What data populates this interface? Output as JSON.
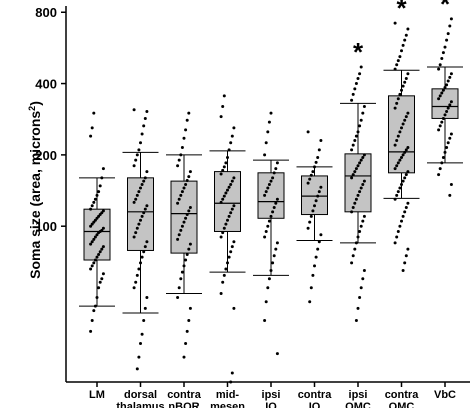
{
  "chart_data": {
    "type": "box",
    "ylabel": "Soma size (area, microns²)",
    "ylabel_parts": {
      "main": "Soma size (area, microns",
      "sup": "2",
      "close": ")"
    },
    "y_scale": "log",
    "ylim": [
      22,
      850
    ],
    "yticks": [
      100,
      200,
      400,
      800
    ],
    "ytick_labels": [
      "100",
      "200",
      "400",
      "800"
    ],
    "grid": false,
    "categories": [
      {
        "line1": "LM",
        "line2": ""
      },
      {
        "line1": "dorsal",
        "line2": "thalamus"
      },
      {
        "line1": "contra",
        "line2": "nBOR"
      },
      {
        "line1": "mid-",
        "line2": "mesen"
      },
      {
        "line1": "ipsi",
        "line2": "IO"
      },
      {
        "line1": "contra",
        "line2": "IO"
      },
      {
        "line1": "ipsi",
        "line2": "OMC"
      },
      {
        "line1": "contra",
        "line2": "OMC"
      },
      {
        "line1": "VbC",
        "line2": ""
      }
    ],
    "boxes": [
      {
        "q1": 72,
        "median": 95,
        "q3": 118,
        "whisker_low": 46,
        "whisker_high": 160,
        "significant": false
      },
      {
        "q1": 79,
        "median": 115,
        "q3": 160,
        "whisker_low": 43,
        "whisker_high": 205,
        "significant": false
      },
      {
        "q1": 77,
        "median": 113,
        "q3": 155,
        "whisker_low": 52,
        "whisker_high": 200,
        "significant": false
      },
      {
        "q1": 95,
        "median": 125,
        "q3": 170,
        "whisker_low": 64,
        "whisker_high": 208,
        "significant": false
      },
      {
        "q1": 108,
        "median": 127,
        "q3": 168,
        "whisker_low": 62,
        "whisker_high": 190,
        "significant": false
      },
      {
        "q1": 112,
        "median": 134,
        "q3": 163,
        "whisker_low": 87,
        "whisker_high": 178,
        "significant": false
      },
      {
        "q1": 115,
        "median": 163,
        "q3": 202,
        "whisker_low": 85,
        "whisker_high": 330,
        "significant": true
      },
      {
        "q1": 168,
        "median": 206,
        "q3": 355,
        "whisker_low": 131,
        "whisker_high": 455,
        "significant": true
      },
      {
        "q1": 285,
        "median": 320,
        "q3": 380,
        "whisker_low": 185,
        "whisker_high": 470,
        "significant": true
      }
    ],
    "points": [
      [
        36,
        40,
        44,
        46,
        50,
        55,
        58,
        60,
        63,
        66,
        68,
        70,
        72,
        74,
        76,
        78,
        80,
        82,
        84,
        86,
        88,
        90,
        92,
        94,
        95,
        96,
        98,
        100,
        102,
        104,
        106,
        108,
        110,
        112,
        114,
        116,
        118,
        122,
        126,
        130,
        135,
        140,
        148,
        160,
        175,
        240,
        260,
        300
      ],
      [
        25,
        28,
        32,
        35,
        40,
        45,
        50,
        55,
        58,
        62,
        66,
        70,
        74,
        78,
        82,
        86,
        90,
        94,
        98,
        102,
        106,
        110,
        114,
        118,
        122,
        126,
        130,
        135,
        140,
        145,
        150,
        155,
        160,
        170,
        180,
        190,
        200,
        210,
        225,
        245,
        265,
        285,
        305,
        310
      ],
      [
        28,
        32,
        36,
        40,
        45,
        50,
        55,
        60,
        64,
        68,
        72,
        76,
        80,
        84,
        88,
        92,
        96,
        100,
        104,
        108,
        112,
        116,
        120,
        125,
        130,
        135,
        140,
        145,
        150,
        156,
        162,
        170,
        180,
        190,
        200,
        215,
        235,
        255,
        280,
        300
      ],
      [
        22,
        24,
        45,
        52,
        58,
        62,
        66,
        70,
        74,
        78,
        82,
        86,
        90,
        94,
        98,
        102,
        106,
        110,
        114,
        118,
        122,
        126,
        130,
        134,
        138,
        142,
        146,
        150,
        155,
        160,
        166,
        172,
        178,
        185,
        195,
        210,
        225,
        240,
        260,
        290,
        320,
        355
      ],
      [
        29,
        40,
        48,
        55,
        60,
        65,
        70,
        75,
        80,
        85,
        90,
        95,
        100,
        105,
        110,
        115,
        120,
        125,
        130,
        135,
        140,
        145,
        150,
        155,
        160,
        168,
        175,
        185,
        200,
        225,
        250,
        275,
        300
      ],
      [
        48,
        55,
        62,
        68,
        74,
        80,
        86,
        92,
        98,
        104,
        110,
        116,
        122,
        128,
        134,
        140,
        146,
        152,
        158,
        164,
        170,
        178,
        186,
        195,
        210,
        230,
        250
      ],
      [
        40,
        45,
        50,
        55,
        60,
        65,
        70,
        75,
        80,
        85,
        90,
        95,
        100,
        105,
        110,
        115,
        120,
        125,
        130,
        135,
        140,
        145,
        150,
        155,
        160,
        165,
        170,
        175,
        180,
        185,
        190,
        195,
        200,
        210,
        220,
        230,
        240,
        250,
        265,
        280,
        300,
        320,
        340,
        360,
        380,
        400,
        420,
        440,
        470
      ],
      [
        65,
        70,
        75,
        80,
        85,
        90,
        95,
        100,
        105,
        110,
        115,
        120,
        125,
        130,
        135,
        140,
        145,
        150,
        155,
        160,
        165,
        170,
        175,
        180,
        185,
        190,
        195,
        200,
        205,
        210,
        215,
        220,
        230,
        240,
        250,
        260,
        270,
        280,
        290,
        300,
        315,
        330,
        345,
        360,
        375,
        390,
        405,
        420,
        440,
        460,
        480,
        500,
        520,
        550,
        580,
        610,
        640,
        680,
        720
      ],
      [
        135,
        150,
        165,
        175,
        185,
        195,
        205,
        215,
        225,
        235,
        245,
        255,
        265,
        275,
        285,
        295,
        305,
        315,
        325,
        335,
        345,
        355,
        365,
        375,
        385,
        395,
        410,
        425,
        440,
        460,
        480,
        510,
        540,
        570,
        610,
        650,
        700,
        750
      ]
    ],
    "significance_marker": "*",
    "colors": {
      "box_fill": "#c4c4c4",
      "stroke": "#000000",
      "points": "#000000"
    }
  }
}
